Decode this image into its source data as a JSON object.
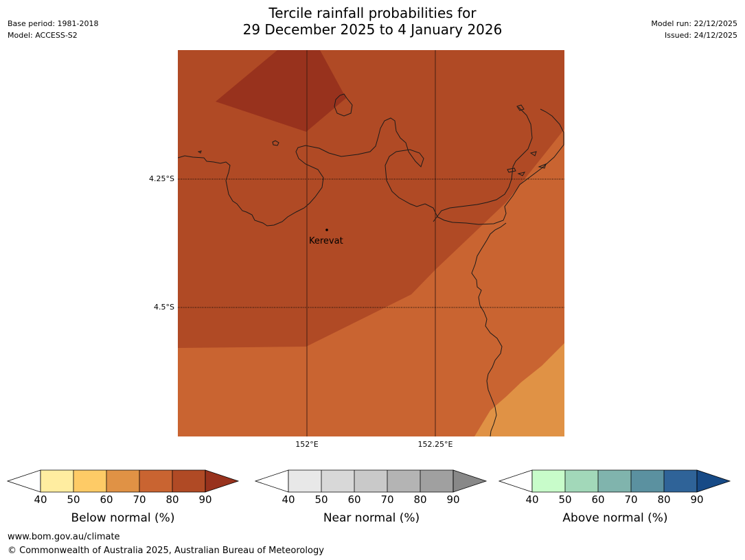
{
  "header": {
    "title_line1": "Tercile rainfall probabilities for",
    "title_line2": "29 December 2025 to 4 January 2026",
    "base_period": "Base period: 1981-2018",
    "model": "Model: ACCESS-S2",
    "model_run": "Model run: 22/12/2025",
    "issued": "Issued: 24/12/2025"
  },
  "map": {
    "latitude_labels": [
      "4.25°S",
      "4.5°S"
    ],
    "longitude_labels": [
      "152°E",
      "152.25°E"
    ],
    "place": "Kerevat",
    "colors": {
      "darkest": "#98321d",
      "dark": "#b04a25",
      "mid": "#c96431",
      "light": "#e09245",
      "coast": "#1a1a1a"
    }
  },
  "legends": [
    {
      "label": "Below normal (%)",
      "ticks": [
        "40",
        "50",
        "60",
        "70",
        "80",
        "90"
      ],
      "colors": [
        "#ffeda0",
        "#fecb66",
        "#e09245",
        "#c96431",
        "#b04a25",
        "#98321d"
      ]
    },
    {
      "label": "Near normal (%)",
      "ticks": [
        "40",
        "50",
        "60",
        "70",
        "80",
        "90"
      ],
      "colors": [
        "#e8e8e8",
        "#d8d8d8",
        "#c9c9c9",
        "#b4b4b4",
        "#a0a0a0",
        "#888888"
      ]
    },
    {
      "label": "Above normal (%)",
      "ticks": [
        "40",
        "50",
        "60",
        "70",
        "80",
        "90"
      ],
      "colors": [
        "#c8fcca",
        "#a2d8b9",
        "#80b4ad",
        "#5b91a0",
        "#2f6398",
        "#174a86"
      ]
    }
  ],
  "footer": {
    "website": "www.bom.gov.au/climate",
    "copyright": "© Commonwealth of Australia 2025, Australian Bureau of Meteorology"
  }
}
